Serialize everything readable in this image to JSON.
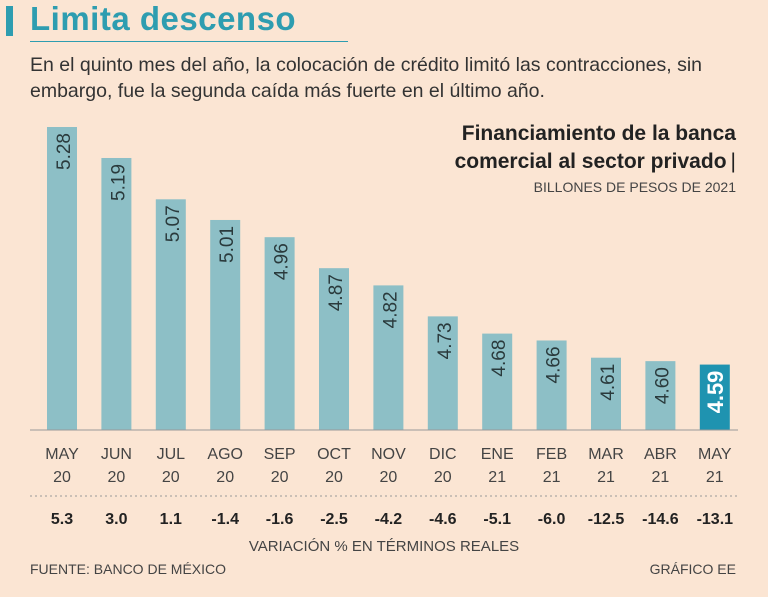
{
  "header": {
    "title": "Limita descenso",
    "subtitle": "En el quinto mes del año, la colocación de crédito limitó las contracciones, sin embargo, fue la segunda caída más fuerte en el último año."
  },
  "colors": {
    "bar": "#8dbfc6",
    "highlight_bar": "#1f93b0",
    "accent": "#2e9db0",
    "background": "#fbe5d3"
  },
  "chart_data": {
    "type": "bar",
    "title_line1": "Financiamiento de la banca",
    "title_line2": "comercial al sector privado",
    "title_sep": "|",
    "units": "BILLONES DE PESOS DE 2021",
    "categories": [
      {
        "month": "MAY",
        "year": "20"
      },
      {
        "month": "JUN",
        "year": "20"
      },
      {
        "month": "JUL",
        "year": "20"
      },
      {
        "month": "AGO",
        "year": "20"
      },
      {
        "month": "SEP",
        "year": "20"
      },
      {
        "month": "OCT",
        "year": "20"
      },
      {
        "month": "NOV",
        "year": "20"
      },
      {
        "month": "DIC",
        "year": "20"
      },
      {
        "month": "ENE",
        "year": "21"
      },
      {
        "month": "FEB",
        "year": "21"
      },
      {
        "month": "MAR",
        "year": "21"
      },
      {
        "month": "ABR",
        "year": "21"
      },
      {
        "month": "MAY",
        "year": "21"
      }
    ],
    "values": [
      5.28,
      5.19,
      5.07,
      5.01,
      4.96,
      4.87,
      4.82,
      4.73,
      4.68,
      4.66,
      4.61,
      4.6,
      4.59
    ],
    "value_labels": [
      "5.28",
      "5.19",
      "5.07",
      "5.01",
      "4.96",
      "4.87",
      "4.82",
      "4.73",
      "4.68",
      "4.66",
      "4.61",
      "4.60",
      "4.59"
    ],
    "highlight_index": 12,
    "variation": [
      "5.3",
      "3.0",
      "1.1",
      "-1.4",
      "-1.6",
      "-2.5",
      "-4.2",
      "-4.6",
      "-5.1",
      "-6.0",
      "-12.5",
      "-14.6",
      "-13.1"
    ],
    "variation_label": "VARIACIÓN % EN TÉRMINOS REALES",
    "ylim": [
      4.4,
      5.28
    ]
  },
  "footer": {
    "source": "FUENTE: BANCO DE MÉXICO",
    "credit": "GRÁFICO EE"
  }
}
